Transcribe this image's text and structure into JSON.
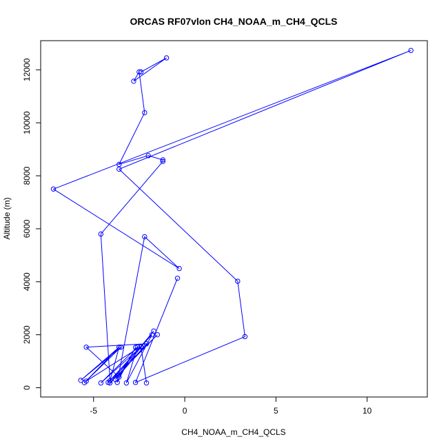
{
  "chart_data": {
    "type": "line",
    "title": "ORCAS RF07vlon CH4_NOAA_m_CH4_QCLS",
    "xlabel": "CH4_NOAA_m_CH4_QCLS",
    "ylabel": "Altitude (m)",
    "xlim": [
      -7.9,
      13.3
    ],
    "ylim": [
      -350,
      13100
    ],
    "x_ticks": [
      -5,
      0,
      5,
      10
    ],
    "y_ticks": [
      0,
      2000,
      4000,
      6000,
      8000,
      10000,
      12000
    ],
    "grid": false,
    "legend": "none",
    "color": "#0000ff",
    "series": [
      {
        "points": [
          [
            -2.4,
            11920
          ],
          [
            -1.0,
            12450
          ],
          [
            -2.8,
            11570
          ],
          [
            -2.5,
            11920
          ],
          [
            -2.2,
            10380
          ],
          [
            -3.6,
            8430
          ],
          [
            -2.0,
            8760
          ],
          [
            -1.2,
            8600
          ],
          [
            -1.2,
            8540
          ],
          [
            -4.6,
            5800
          ],
          [
            -4.1,
            260
          ],
          [
            -3.6,
            1530
          ],
          [
            -5.7,
            280
          ],
          [
            -3.5,
            1530
          ],
          [
            -5.5,
            190
          ],
          [
            -3.6,
            1530
          ],
          [
            -5.4,
            250
          ],
          [
            -2.4,
            1560
          ],
          [
            -2.1,
            180
          ],
          [
            -2.4,
            1540
          ],
          [
            -4.6,
            180
          ],
          [
            -2.6,
            1540
          ],
          [
            -3.2,
            180
          ],
          [
            -1.8,
            2000
          ],
          [
            -4.2,
            200
          ],
          [
            -1.5,
            2000
          ],
          [
            -4.1,
            180
          ],
          [
            -1.7,
            2140
          ],
          [
            -3.8,
            310
          ],
          [
            -2.1,
            1660
          ],
          [
            -5.4,
            1530
          ],
          [
            -3.6,
            400
          ],
          [
            -2.7,
            1520
          ],
          [
            -3.7,
            200
          ],
          [
            -2.2,
            5700
          ],
          [
            -0.3,
            4500
          ],
          [
            -7.2,
            7500
          ],
          [
            12.4,
            12730
          ],
          [
            -3.6,
            8250
          ],
          [
            2.9,
            4020
          ],
          [
            3.3,
            1930
          ],
          [
            -2.7,
            200
          ],
          [
            -0.4,
            4130
          ]
        ]
      }
    ]
  }
}
